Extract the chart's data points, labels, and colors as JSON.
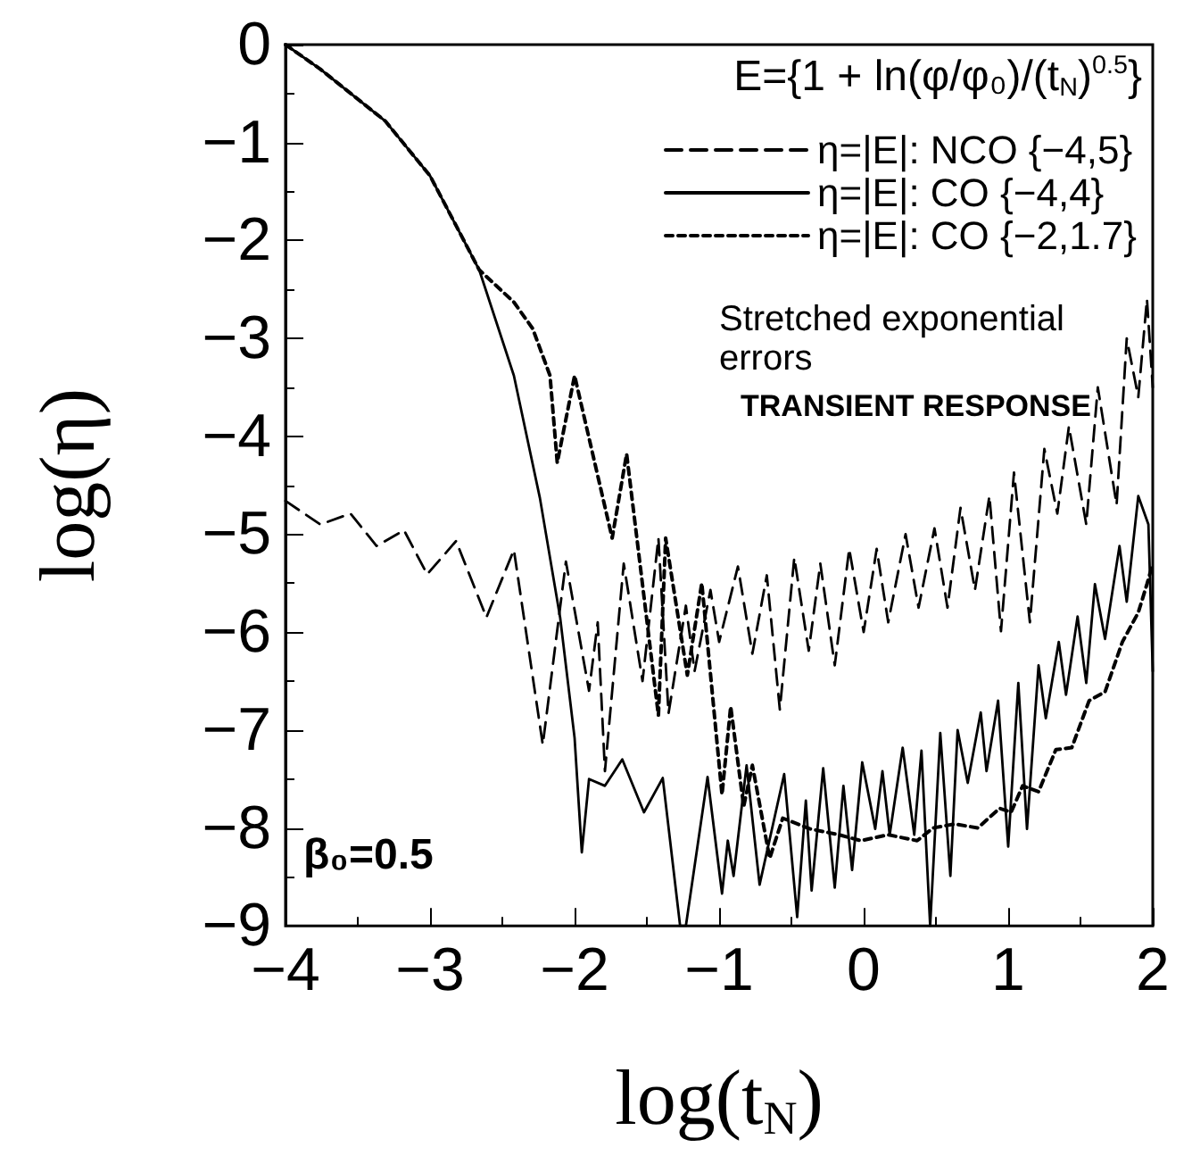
{
  "chart_data": {
    "type": "line",
    "xlabel": "log(t$_{N}$)",
    "ylabel": "log(η)",
    "xlim": [
      -4,
      2
    ],
    "xticks": [
      -4,
      -3,
      -2,
      -1,
      0,
      1,
      2
    ],
    "ylim": [
      -9,
      0
    ],
    "yticks": [
      0,
      -1,
      -2,
      -3,
      -4,
      -5,
      -6,
      -7,
      -8,
      -9
    ],
    "grid": false,
    "legend": "top right",
    "marker": "none",
    "annotations": [
      "E={1 + ln(φ/φ₀)/(t$_{N}$)$^{0.5}$}",
      "Stretched exponential errors",
      "TRANSIENT RESPONSE",
      "β₀=0.5"
    ],
    "series": [
      {
        "name": "η=|E|: NCO {−4,5}",
        "color": "#000000",
        "line_style": "dashed",
        "x": [
          -4.0,
          -3.76,
          -3.55,
          -3.37,
          -3.18,
          -3.02,
          -2.82,
          -2.61,
          -2.42,
          -2.22,
          -2.06,
          -1.9,
          -1.84,
          -1.79,
          -1.66,
          -1.53,
          -1.42,
          -1.35,
          -1.23,
          -1.17,
          -1.06,
          -1.0,
          -0.87,
          -0.77,
          -0.67,
          -0.58,
          -0.48,
          -0.38,
          -0.3,
          -0.2,
          -0.1,
          0.0,
          0.09,
          0.17,
          0.29,
          0.38,
          0.49,
          0.58,
          0.67,
          0.77,
          0.87,
          0.95,
          1.04,
          1.15,
          1.25,
          1.34,
          1.42,
          1.54,
          1.62,
          1.75,
          1.82,
          1.9,
          1.96,
          2.0
        ],
        "values": [
          -4.66,
          -4.9,
          -4.79,
          -5.12,
          -4.96,
          -5.41,
          -5.07,
          -5.85,
          -5.16,
          -7.15,
          -5.28,
          -6.6,
          -5.9,
          -7.42,
          -5.3,
          -6.5,
          -5.04,
          -6.83,
          -5.73,
          -6.4,
          -5.57,
          -6.1,
          -5.33,
          -6.22,
          -5.42,
          -6.79,
          -5.24,
          -6.19,
          -5.3,
          -6.34,
          -5.15,
          -6.0,
          -5.15,
          -5.9,
          -5.0,
          -5.75,
          -4.94,
          -5.75,
          -4.73,
          -5.57,
          -4.61,
          -5.99,
          -4.37,
          -5.9,
          -4.13,
          -4.79,
          -3.9,
          -4.9,
          -3.5,
          -4.7,
          -3.0,
          -3.6,
          -2.6,
          -3.5
        ]
      },
      {
        "name": "η=|E|: CO {−4,4}",
        "color": "#000000",
        "line_style": "solid",
        "x": [
          -4.0,
          -3.76,
          -3.31,
          -3.0,
          -2.66,
          -2.42,
          -2.24,
          -2.1,
          -2.0,
          -1.95,
          -1.9,
          -1.79,
          -1.67,
          -1.52,
          -1.39,
          -1.27,
          -1.23,
          -1.08,
          -0.98,
          -0.94,
          -0.9,
          -0.81,
          -0.72,
          -0.55,
          -0.46,
          -0.4,
          -0.36,
          -0.28,
          -0.2,
          -0.14,
          -0.08,
          -0.01,
          0.08,
          0.13,
          0.18,
          0.27,
          0.35,
          0.4,
          0.46,
          0.53,
          0.6,
          0.65,
          0.72,
          0.81,
          0.85,
          0.93,
          1.0,
          1.07,
          1.13,
          1.21,
          1.26,
          1.35,
          1.4,
          1.48,
          1.54,
          1.6,
          1.67,
          1.77,
          1.82,
          1.9,
          1.97,
          2.0
        ],
        "values": [
          0,
          -0.25,
          -0.78,
          -1.34,
          -2.3,
          -3.38,
          -4.63,
          -5.85,
          -7.08,
          -8.25,
          -7.5,
          -7.57,
          -7.3,
          -7.84,
          -7.49,
          -9.0,
          -9.0,
          -7.48,
          -8.67,
          -8.13,
          -8.49,
          -7.36,
          -8.58,
          -7.45,
          -8.91,
          -7.72,
          -8.64,
          -7.39,
          -8.61,
          -7.57,
          -8.43,
          -7.33,
          -8.01,
          -7.42,
          -8.07,
          -7.18,
          -8.07,
          -7.21,
          -9.0,
          -7.03,
          -8.49,
          -7.0,
          -7.54,
          -6.82,
          -7.42,
          -6.7,
          -8.19,
          -6.52,
          -8.01,
          -6.34,
          -6.88,
          -6.1,
          -6.64,
          -5.84,
          -6.52,
          -5.51,
          -6.07,
          -5.12,
          -5.69,
          -4.61,
          -4.9,
          -6.4
        ]
      },
      {
        "name": "η=|E|: CO {−2,1.7}",
        "color": "#000000",
        "line_style": "dotted",
        "x": [
          -4.0,
          -3.76,
          -3.31,
          -3.0,
          -2.66,
          -2.42,
          -2.29,
          -2.17,
          -2.12,
          -2.0,
          -1.74,
          -1.64,
          -1.42,
          -1.37,
          -1.22,
          -1.12,
          -0.98,
          -0.92,
          -0.83,
          -0.77,
          -0.65,
          -0.56,
          -0.37,
          -0.17,
          -0.02,
          0.17,
          0.37,
          0.48,
          0.63,
          0.79,
          0.94,
          1.02,
          1.1,
          1.21,
          1.33,
          1.44,
          1.56,
          1.67,
          1.79,
          1.9,
          1.96,
          2.0
        ],
        "values": [
          0,
          -0.25,
          -0.78,
          -1.34,
          -2.3,
          -2.63,
          -2.9,
          -3.38,
          -4.27,
          -3.38,
          -5.04,
          -4.18,
          -6.85,
          -5.04,
          -6.44,
          -5.5,
          -7.66,
          -6.76,
          -7.78,
          -7.36,
          -8.31,
          -7.9,
          -8.01,
          -8.07,
          -8.13,
          -8.07,
          -8.13,
          -8.0,
          -7.96,
          -8.0,
          -7.8,
          -7.84,
          -7.57,
          -7.63,
          -7.2,
          -7.18,
          -6.7,
          -6.61,
          -6.1,
          -5.8,
          -5.51,
          -5.3
        ]
      }
    ]
  }
}
